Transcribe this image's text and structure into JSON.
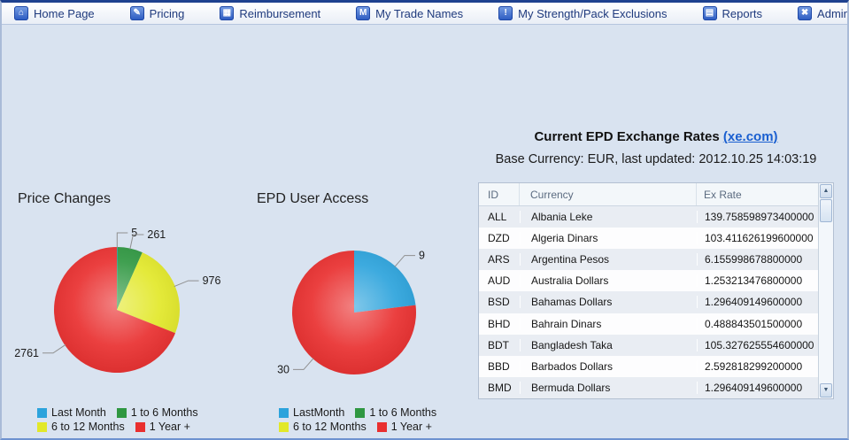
{
  "nav": {
    "items": [
      {
        "name": "home-page",
        "icon": "home-icon",
        "glyph": "⌂",
        "label": "Home Page"
      },
      {
        "name": "pricing",
        "icon": "pencil-icon",
        "glyph": "✎",
        "label": "Pricing"
      },
      {
        "name": "reimbursement",
        "icon": "calculator-icon",
        "glyph": "▦",
        "label": "Reimbursement"
      },
      {
        "name": "my-trade-names",
        "icon": "trade-names-icon",
        "glyph": "M",
        "label": "My Trade Names"
      },
      {
        "name": "my-strength-pack-exclusions",
        "icon": "exclamation-icon",
        "glyph": "!",
        "label": "My Strength/Pack Exclusions"
      },
      {
        "name": "reports",
        "icon": "document-icon",
        "glyph": "▤",
        "label": "Reports"
      },
      {
        "name": "administration",
        "icon": "tools-cross-icon",
        "glyph": "✖",
        "label": "Administration"
      }
    ]
  },
  "chart_data": [
    {
      "type": "pie",
      "title": "Price Changes",
      "labels": [
        "Last Month",
        "1 to 6 Months",
        "6 to 12 Months",
        "1 Year +"
      ],
      "values": [
        5,
        261,
        976,
        2761
      ],
      "data_labels": [
        "5",
        "261",
        "976",
        "2761"
      ],
      "colors": [
        "#2ca3dc",
        "#2f9741",
        "#e2e829",
        "#e92f2f"
      ],
      "legend_position": "bottom",
      "start_angle": "top",
      "direction": "clockwise"
    },
    {
      "type": "pie",
      "title": "EPD User Access",
      "labels": [
        "LastMonth",
        "1 to 6 Months",
        "6 to 12 Months",
        "1 Year +"
      ],
      "values": [
        9,
        0,
        0,
        30
      ],
      "data_labels": [
        "9",
        "",
        "",
        "30"
      ],
      "colors": [
        "#2ca3dc",
        "#2f9741",
        "#e2e829",
        "#e92f2f"
      ],
      "legend_position": "bottom",
      "start_angle": "top",
      "direction": "clockwise"
    }
  ],
  "exchange": {
    "title": "Current EPD Exchange Rates",
    "link_label": "(xe.com)",
    "subtitle": "Base Currency: EUR, last updated: 2012.10.25 14:03:19",
    "table": {
      "columns": [
        "ID",
        "Currency",
        "Ex Rate"
      ],
      "rows": [
        [
          "ALL",
          "Albania Leke",
          "139.758598973400000"
        ],
        [
          "DZD",
          "Algeria Dinars",
          "103.411626199600000"
        ],
        [
          "ARS",
          "Argentina Pesos",
          "6.155998678800000"
        ],
        [
          "AUD",
          "Australia Dollars",
          "1.253213476800000"
        ],
        [
          "BSD",
          "Bahamas Dollars",
          "1.296409149600000"
        ],
        [
          "BHD",
          "Bahrain Dinars",
          "0.488843501500000"
        ],
        [
          "BDT",
          "Bangladesh Taka",
          "105.327625554600000"
        ],
        [
          "BBD",
          "Barbados Dollars",
          "2.592818299200000"
        ],
        [
          "BMD",
          "Bermuda Dollars",
          "1.296409149600000"
        ]
      ]
    }
  },
  "colors": {
    "content_background": "#d9e3f0",
    "nav_text": "#1f3a7d",
    "nav_icon": "#2a59c0",
    "link": "#1a5fd0",
    "row_stripe": "#e9edf3",
    "callout_line": "#8f8f8f",
    "pie_blue": "#2ca3dc",
    "pie_green": "#2f9741",
    "pie_yellow": "#e2e829",
    "pie_red": "#e92f2f"
  }
}
